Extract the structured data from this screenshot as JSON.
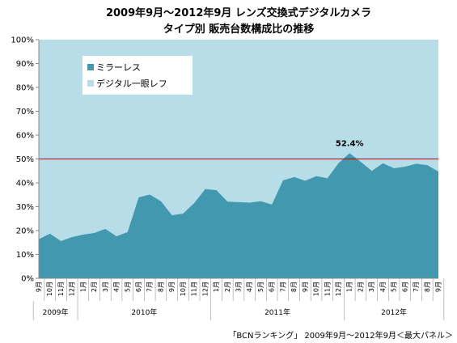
{
  "chart_data": {
    "type": "area",
    "stacked": true,
    "title": "2009年9月～2012年9月 レンズ交換式デジタルカメラ",
    "subtitle": "タイプ別 販売台数構成比の推移",
    "source": "「BCNランキング」 2009年9月～2012年9月＜最大パネル＞",
    "ylim": [
      0,
      100
    ],
    "yticks": [
      "0%",
      "10%",
      "20%",
      "30%",
      "40%",
      "50%",
      "60%",
      "70%",
      "80%",
      "90%",
      "100%"
    ],
    "months": [
      "9月",
      "10月",
      "11月",
      "12月",
      "1月",
      "2月",
      "3月",
      "4月",
      "5月",
      "6月",
      "7月",
      "8月",
      "9月",
      "10月",
      "11月",
      "12月",
      "1月",
      "2月",
      "3月",
      "4月",
      "5月",
      "6月",
      "7月",
      "8月",
      "9月",
      "10月",
      "11月",
      "12月",
      "1月",
      "2月",
      "3月",
      "4月",
      "5月",
      "6月",
      "7月",
      "8月",
      "9月"
    ],
    "years": [
      {
        "label": "2009年",
        "start": 0,
        "end": 3
      },
      {
        "label": "2010年",
        "start": 4,
        "end": 15
      },
      {
        "label": "2011年",
        "start": 16,
        "end": 27
      },
      {
        "label": "2012年",
        "start": 28,
        "end": 36
      }
    ],
    "series": [
      {
        "name": "ミラーレス",
        "color": "#4298AF",
        "values": [
          16.4,
          18.7,
          15.6,
          17.3,
          18.3,
          19.0,
          20.7,
          17.6,
          19.4,
          33.9,
          35.1,
          32.3,
          26.4,
          27.1,
          31.5,
          37.4,
          36.9,
          32.1,
          31.9,
          31.7,
          32.3,
          30.9,
          41.0,
          42.4,
          40.9,
          42.8,
          41.9,
          48.2,
          52.4,
          48.8,
          45.0,
          48.2,
          46.1,
          46.8,
          48.0,
          47.4,
          44.7
        ]
      },
      {
        "name": "デジタル一眼レフ",
        "color": "#B7DDE8",
        "values": [
          83.6,
          81.3,
          84.4,
          82.7,
          81.7,
          81.0,
          79.3,
          82.4,
          80.6,
          66.1,
          64.9,
          67.7,
          73.6,
          72.9,
          68.5,
          62.6,
          63.1,
          67.9,
          68.1,
          68.3,
          67.7,
          69.1,
          59.0,
          57.6,
          59.1,
          57.2,
          58.1,
          51.8,
          47.6,
          51.2,
          55.0,
          51.8,
          53.9,
          53.2,
          52.0,
          52.6,
          55.3
        ]
      }
    ],
    "reference_line": {
      "value": 50,
      "color": "#C00000"
    },
    "annotation": {
      "text": "52.4%",
      "index": 28
    },
    "grid": false,
    "legend": "top-left"
  }
}
